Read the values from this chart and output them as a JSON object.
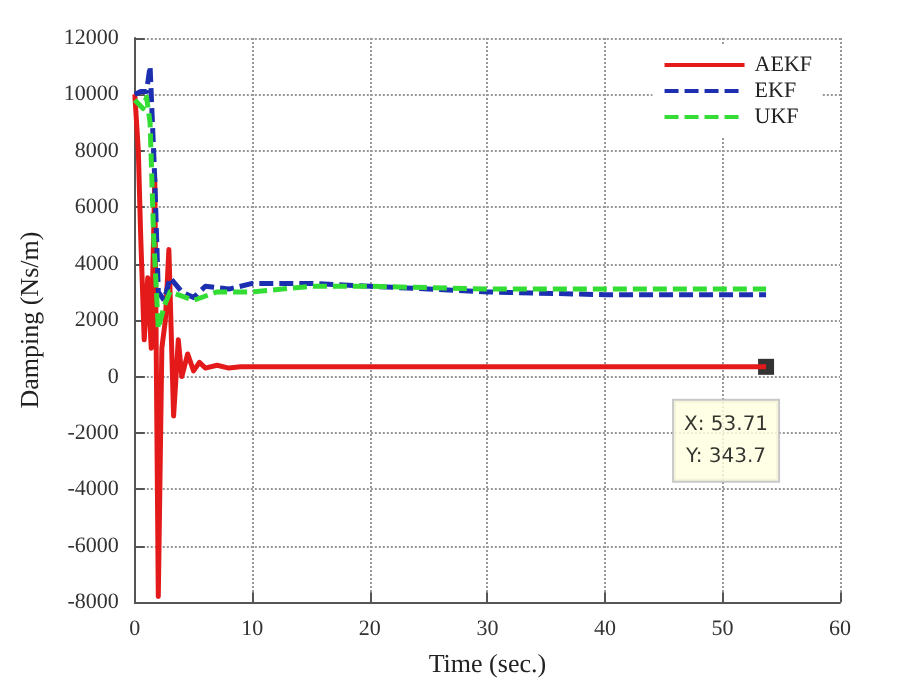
{
  "chart_data": {
    "type": "line",
    "xlabel": "Time (sec.)",
    "ylabel": "Damping (Ns/m)",
    "xlim": [
      0,
      60
    ],
    "xticks": [
      0,
      10,
      20,
      30,
      40,
      50,
      60
    ],
    "ylim": [
      -8000,
      12000
    ],
    "yticks": [
      -8000,
      -6000,
      -4000,
      -2000,
      0,
      2000,
      4000,
      6000,
      8000,
      10000,
      12000
    ],
    "grid": true,
    "legend": "top right",
    "marker": "none",
    "series": [
      {
        "name": "AEKF",
        "color": "#e41a1a",
        "line_style": "solid",
        "x": [
          0,
          0.3,
          0.5,
          0.8,
          1.1,
          1.4,
          1.7,
          2.0,
          2.3,
          2.6,
          2.9,
          3.3,
          3.7,
          4.0,
          4.5,
          5.0,
          5.5,
          6.0,
          7.0,
          8.0,
          9.0,
          53.71
        ],
        "values": [
          10000,
          8000,
          5000,
          1300,
          3500,
          1000,
          7000,
          -7800,
          1000,
          2000,
          4500,
          -1400,
          1300,
          0,
          800,
          200,
          500,
          300,
          400,
          300,
          343.7,
          343.7
        ]
      },
      {
        "name": "EKF",
        "color": "#1c2fb0",
        "line_style": "dashed",
        "x": [
          0,
          0.5,
          1.0,
          1.3,
          1.7,
          2.0,
          2.5,
          3.0,
          4.0,
          5.0,
          6.0,
          8.0,
          10,
          15,
          20,
          30,
          40,
          53.71
        ],
        "values": [
          10000,
          10100,
          10100,
          11000,
          7000,
          3000,
          2700,
          3500,
          3000,
          2800,
          3200,
          3100,
          3300,
          3300,
          3200,
          3000,
          2900,
          2900
        ]
      },
      {
        "name": "UKF",
        "color": "#33dd33",
        "line_style": "dashed",
        "x": [
          0,
          0.7,
          1.0,
          1.3,
          1.6,
          2.0,
          2.5,
          3.0,
          5.0,
          7.0,
          10,
          15,
          20,
          30,
          40,
          53.71
        ],
        "values": [
          9800,
          9500,
          9900,
          9000,
          5000,
          1700,
          2500,
          3000,
          2700,
          3000,
          3000,
          3200,
          3200,
          3100,
          3100,
          3100
        ]
      }
    ],
    "annotations": [
      {
        "text": "X: 53.71\nY: 343.7",
        "x": 53.71,
        "y": 343.7
      }
    ]
  }
}
